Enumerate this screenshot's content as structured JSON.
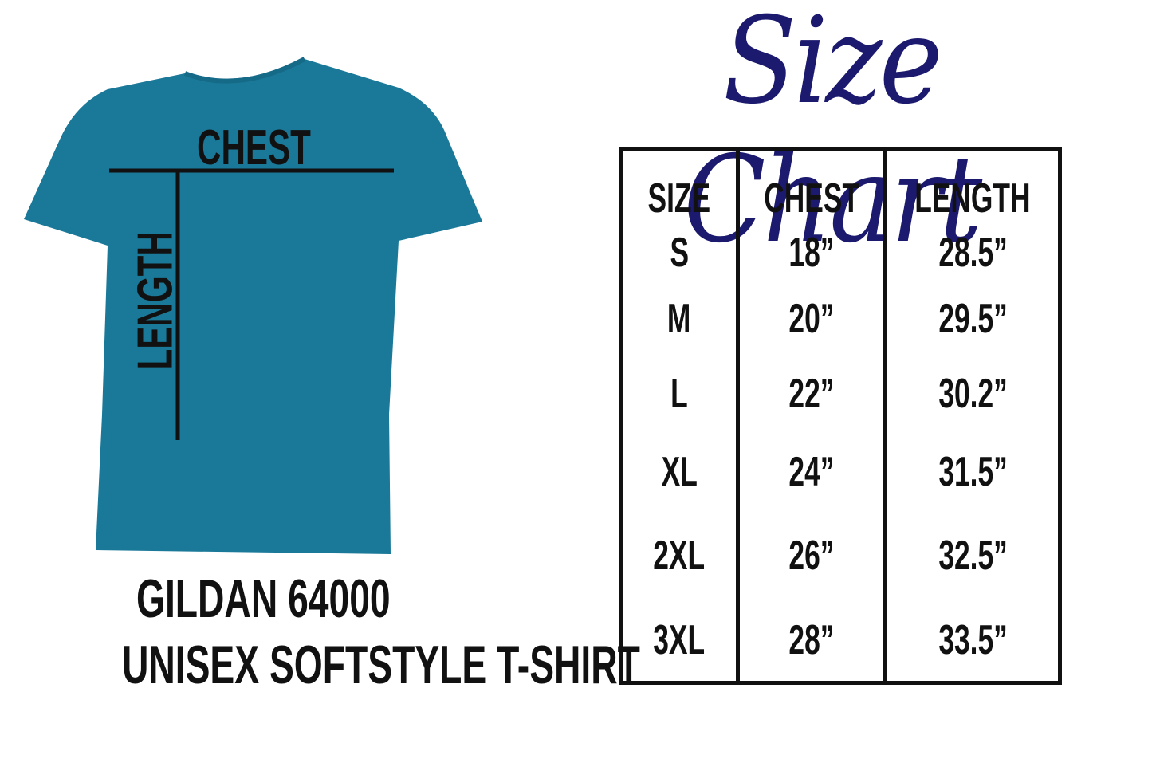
{
  "title": "Size Chart",
  "diagram": {
    "chest_label": "CHEST",
    "length_label": "LENGTH",
    "shirt_color": "#1a7898"
  },
  "product": {
    "line1": "GILDAN 64000",
    "line2": "UNISEX SOFTSTYLE T-SHIRT"
  },
  "table": {
    "headers": [
      "SIZE",
      "CHEST",
      "LENGTH"
    ],
    "rows": [
      [
        "S",
        "18”",
        "28.5”"
      ],
      [
        "M",
        "20”",
        "29.5”"
      ],
      [
        "L",
        "22”",
        "30.2”"
      ],
      [
        "XL",
        "24”",
        "31.5”"
      ],
      [
        "2XL",
        "26”",
        "32.5”"
      ],
      [
        "3XL",
        "28”",
        "33.5”"
      ]
    ]
  }
}
